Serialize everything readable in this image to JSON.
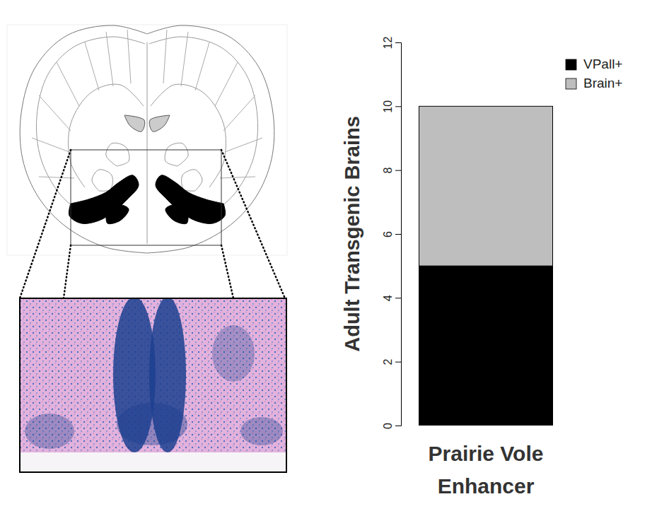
{
  "chart_data": {
    "type": "bar",
    "stacked": true,
    "categories": [
      "Prairie Vole Enhancer"
    ],
    "series": [
      {
        "name": "VPall+",
        "color": "#000000",
        "values": [
          5
        ]
      },
      {
        "name": "Brain+",
        "color": "#bebebe",
        "values": [
          5
        ]
      }
    ],
    "y_label": "Adult Transgenic Brains",
    "ylim": [
      0,
      12
    ],
    "yticks": [
      0,
      2,
      4,
      6,
      8,
      10,
      12
    ],
    "legend": "top-right"
  }
}
